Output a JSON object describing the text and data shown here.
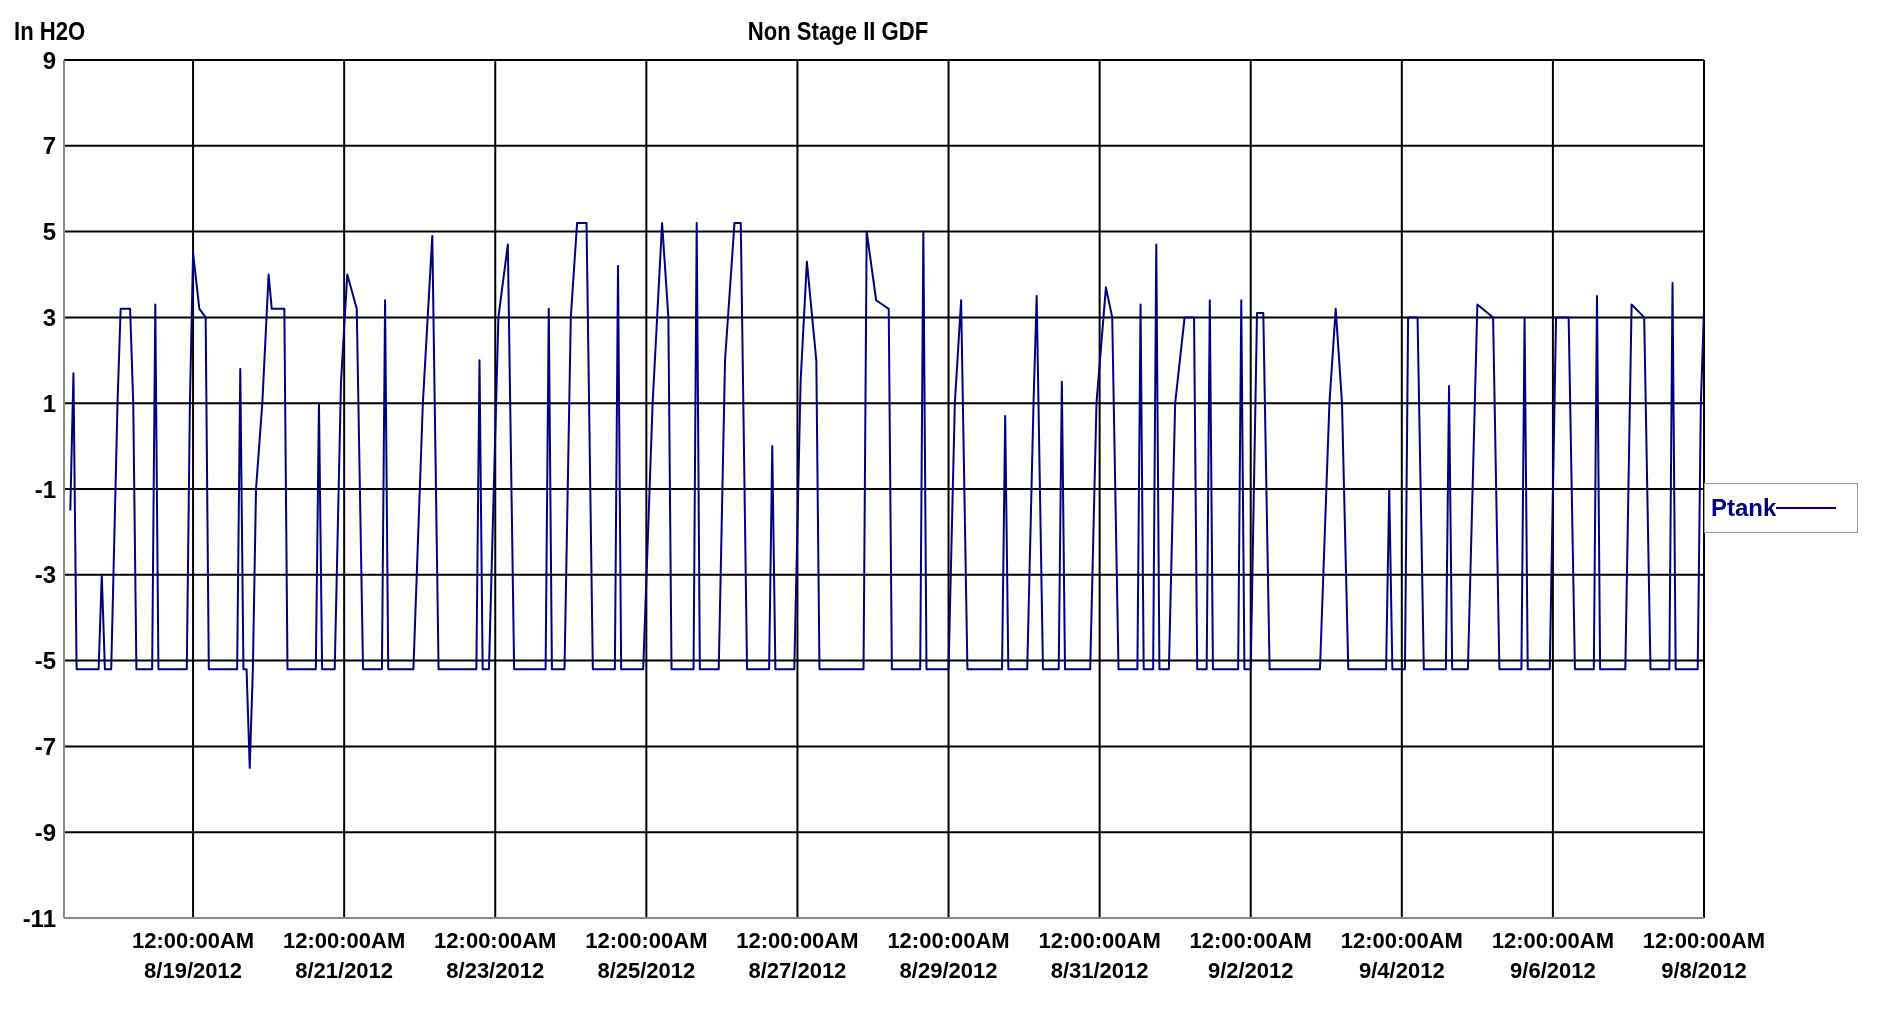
{
  "chart_data": {
    "type": "line",
    "title": "Non Stage II GDF",
    "ylabel": "In H2O",
    "legend": "right",
    "grid": true,
    "marker": "none",
    "line_style": "solid",
    "xlim": [
      "2012-08-17T07:00",
      "2012-09-08T00:00"
    ],
    "ylim": [
      -11,
      9
    ],
    "yticks": [
      -11,
      -9,
      -7,
      -5,
      -3,
      -1,
      1,
      3,
      5,
      7,
      9
    ],
    "xticks": [
      {
        "value": "2012-08-19",
        "label": "12:00:00AM\n8/19/2012"
      },
      {
        "value": "2012-08-21",
        "label": "12:00:00AM\n8/21/2012"
      },
      {
        "value": "2012-08-23",
        "label": "12:00:00AM\n8/23/2012"
      },
      {
        "value": "2012-08-25",
        "label": "12:00:00AM\n8/25/2012"
      },
      {
        "value": "2012-08-27",
        "label": "12:00:00AM\n8/27/2012"
      },
      {
        "value": "2012-08-29",
        "label": "12:00:00AM\n8/29/2012"
      },
      {
        "value": "2012-08-31",
        "label": "12:00:00AM\n8/31/2012"
      },
      {
        "value": "2012-09-02",
        "label": "12:00:00AM\n9/2/2012"
      },
      {
        "value": "2012-09-04",
        "label": "12:00:00AM\n9/4/2012"
      },
      {
        "value": "2012-09-06",
        "label": "12:00:00AM\n9/6/2012"
      },
      {
        "value": "2012-09-08",
        "label": "12:00:00AM\n9/8/2012"
      }
    ],
    "series": [
      {
        "name": "Ptank",
        "color": "#000080",
        "x": [
          "2012-08-17T09:00",
          "2012-08-17T10:00",
          "2012-08-17T11:00",
          "2012-08-17T18:00",
          "2012-08-17T19:00",
          "2012-08-17T20:00",
          "2012-08-17T22:00",
          "2012-08-18T00:00",
          "2012-08-18T01:00",
          "2012-08-18T04:00",
          "2012-08-18T05:00",
          "2012-08-18T06:00",
          "2012-08-18T11:00",
          "2012-08-18T12:00",
          "2012-08-18T13:00",
          "2012-08-18T22:00",
          "2012-08-18T23:00",
          "2012-08-19T00:00",
          "2012-08-19T02:00",
          "2012-08-19T04:00",
          "2012-08-19T05:00",
          "2012-08-19T14:00",
          "2012-08-19T15:00",
          "2012-08-19T16:00",
          "2012-08-19T17:00",
          "2012-08-19T18:00",
          "2012-08-19T19:00",
          "2012-08-19T20:00",
          "2012-08-19T22:00",
          "2012-08-20T00:00",
          "2012-08-20T01:00",
          "2012-08-20T05:00",
          "2012-08-20T06:00",
          "2012-08-20T15:00",
          "2012-08-20T16:00",
          "2012-08-20T17:00",
          "2012-08-20T21:00",
          "2012-08-20T23:00",
          "2012-08-21T01:00",
          "2012-08-21T04:00",
          "2012-08-21T06:00",
          "2012-08-21T12:00",
          "2012-08-21T13:00",
          "2012-08-21T14:00",
          "2012-08-21T22:00",
          "2012-08-22T01:00",
          "2012-08-22T04:00",
          "2012-08-22T06:00",
          "2012-08-22T18:00",
          "2012-08-22T19:00",
          "2012-08-22T20:00",
          "2012-08-22T22:00",
          "2012-08-23T01:00",
          "2012-08-23T04:00",
          "2012-08-23T06:00",
          "2012-08-23T16:00",
          "2012-08-23T17:00",
          "2012-08-23T18:00",
          "2012-08-23T22:00",
          "2012-08-24T00:00",
          "2012-08-24T02:00",
          "2012-08-24T05:00",
          "2012-08-24T07:00",
          "2012-08-24T14:00",
          "2012-08-24T15:00",
          "2012-08-24T16:00",
          "2012-08-24T23:00",
          "2012-08-25T02:00",
          "2012-08-25T05:00",
          "2012-08-25T07:00",
          "2012-08-25T08:00",
          "2012-08-25T15:00",
          "2012-08-25T16:00",
          "2012-08-25T17:00",
          "2012-08-25T23:00",
          "2012-08-26T01:00",
          "2012-08-26T04:00",
          "2012-08-26T06:00",
          "2012-08-26T08:00",
          "2012-08-26T15:00",
          "2012-08-26T16:00",
          "2012-08-26T17:00",
          "2012-08-26T23:00",
          "2012-08-27T01:00",
          "2012-08-27T03:00",
          "2012-08-27T06:00",
          "2012-08-27T07:00",
          "2012-08-27T21:00",
          "2012-08-27T22:00",
          "2012-08-28T01:00",
          "2012-08-28T05:00",
          "2012-08-28T06:00",
          "2012-08-28T15:00",
          "2012-08-28T16:00",
          "2012-08-28T17:00",
          "2012-08-29T00:00",
          "2012-08-29T02:00",
          "2012-08-29T04:00",
          "2012-08-29T06:00",
          "2012-08-29T17:00",
          "2012-08-29T18:00",
          "2012-08-29T19:00",
          "2012-08-30T01:00",
          "2012-08-30T03:00",
          "2012-08-30T04:00",
          "2012-08-30T06:00",
          "2012-08-30T11:00",
          "2012-08-30T12:00",
          "2012-08-30T13:00",
          "2012-08-30T21:00",
          "2012-08-30T23:00",
          "2012-08-31T02:00",
          "2012-08-31T04:00",
          "2012-08-31T06:00",
          "2012-08-31T12:00",
          "2012-08-31T13:00",
          "2012-08-31T14:00",
          "2012-08-31T17:00",
          "2012-08-31T18:00",
          "2012-08-31T19:00",
          "2012-08-31T22:00",
          "2012-09-01T00:00",
          "2012-09-01T03:00",
          "2012-09-01T06:00",
          "2012-09-01T07:00",
          "2012-09-01T10:00",
          "2012-09-01T11:00",
          "2012-09-01T12:00",
          "2012-09-01T20:00",
          "2012-09-01T21:00",
          "2012-09-01T22:00",
          "2012-09-02T00:00",
          "2012-09-02T02:00",
          "2012-09-02T04:00",
          "2012-09-02T06:00",
          "2012-09-02T22:00",
          "2012-09-03T01:00",
          "2012-09-03T03:00",
          "2012-09-03T05:00",
          "2012-09-03T07:00",
          "2012-09-03T19:00",
          "2012-09-03T20:00",
          "2012-09-03T21:00",
          "2012-09-04T01:00",
          "2012-09-04T02:00",
          "2012-09-04T05:00",
          "2012-09-04T07:00",
          "2012-09-04T14:00",
          "2012-09-04T15:00",
          "2012-09-04T16:00",
          "2012-09-04T21:00",
          "2012-09-05T00:00",
          "2012-09-05T05:00",
          "2012-09-05T07:00",
          "2012-09-05T14:00",
          "2012-09-05T15:00",
          "2012-09-05T16:00",
          "2012-09-05T23:00",
          "2012-09-06T01:00",
          "2012-09-06T05:00",
          "2012-09-06T07:00",
          "2012-09-06T13:00",
          "2012-09-06T14:00",
          "2012-09-06T15:00",
          "2012-09-06T23:00",
          "2012-09-07T01:00",
          "2012-09-07T05:00",
          "2012-09-07T07:00",
          "2012-09-07T13:00",
          "2012-09-07T14:00",
          "2012-09-07T15:00",
          "2012-09-07T22:00",
          "2012-09-07T23:00",
          "2012-09-08T00:00"
        ],
        "values": [
          -1.5,
          1.7,
          -5.2,
          -5.2,
          -3,
          -5.2,
          -5.2,
          1,
          3.2,
          3.2,
          1,
          -5.2,
          -5.2,
          3.3,
          -5.2,
          -5.2,
          1,
          4.5,
          3.2,
          3,
          -5.2,
          -5.2,
          1.8,
          -5.2,
          -5.2,
          -7.5,
          -5.2,
          -1,
          1,
          4,
          3.2,
          3.2,
          -5.2,
          -5.2,
          1,
          -5.2,
          -5.2,
          1.5,
          4,
          3.2,
          -5.2,
          -5.2,
          3.4,
          -5.2,
          -5.2,
          1,
          4.9,
          -5.2,
          -5.2,
          2,
          -5.2,
          -5.2,
          3,
          4.7,
          -5.2,
          -5.2,
          3.2,
          -5.2,
          -5.2,
          3,
          5.2,
          5.2,
          -5.2,
          -5.2,
          4.2,
          -5.2,
          -5.2,
          1,
          5.2,
          3,
          -5.2,
          -5.2,
          5.2,
          -5.2,
          -5.2,
          2,
          5.2,
          5.2,
          -5.2,
          -5.2,
          0,
          -5.2,
          -5.2,
          1.5,
          4.3,
          2,
          -5.2,
          -5.2,
          5,
          3.4,
          3.2,
          -5.2,
          -5.2,
          5,
          -5.2,
          -5.2,
          1,
          3.4,
          -5.2,
          -5.2,
          0.7,
          -5.2,
          -5.2,
          1,
          3.5,
          -5.2,
          -5.2,
          1.5,
          -5.2,
          -5.2,
          1,
          3.7,
          3,
          -5.2,
          -5.2,
          3.3,
          -5.2,
          -5.2,
          4.7,
          -5.2,
          -5.2,
          1,
          3,
          3,
          -5.2,
          -5.2,
          3.4,
          -5.2,
          -5.2,
          3.4,
          -5.2,
          -5.2,
          3.1,
          3.1,
          -5.2,
          -5.2,
          1,
          3.2,
          1,
          -5.2,
          -5.2,
          -1,
          -5.2,
          -5.2,
          3,
          3,
          -5.2,
          -5.2,
          1.4,
          -5.2,
          -5.2,
          3.3,
          3,
          -5.2,
          -5.2,
          3,
          -5.2,
          -5.2,
          3,
          3,
          -5.2,
          -5.2,
          3.5,
          -5.2,
          -5.2,
          3.3,
          3,
          -5.2,
          -5.2,
          3.8,
          -5.2,
          -5.2,
          1,
          3.2
        ]
      }
    ]
  }
}
